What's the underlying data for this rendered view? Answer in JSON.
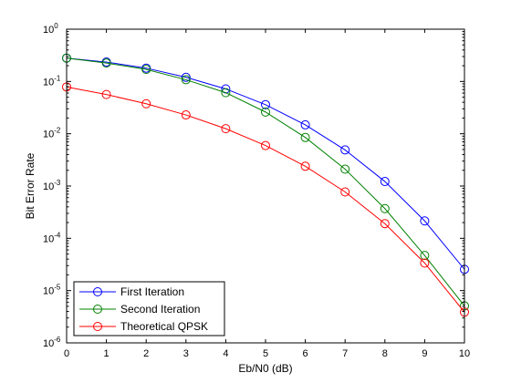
{
  "chart_data": {
    "type": "line",
    "title": "",
    "xlabel": "Eb/N0 (dB)",
    "ylabel": "Bit Error Rate",
    "x": [
      0,
      1,
      2,
      3,
      4,
      5,
      6,
      7,
      8,
      9,
      10
    ],
    "xlim": [
      0,
      10
    ],
    "ylim": [
      1e-06,
      1
    ],
    "yscale": "log",
    "x_ticks": [
      "0",
      "1",
      "2",
      "3",
      "4",
      "5",
      "6",
      "7",
      "8",
      "9",
      "10"
    ],
    "y_ticks": [
      {
        "base": "10",
        "exp": "0"
      },
      {
        "base": "10",
        "exp": "-1"
      },
      {
        "base": "10",
        "exp": "-2"
      },
      {
        "base": "10",
        "exp": "-3"
      },
      {
        "base": "10",
        "exp": "-4"
      },
      {
        "base": "10",
        "exp": "-5"
      },
      {
        "base": "10",
        "exp": "-6"
      }
    ],
    "grid": false,
    "legend_position": "bottom-left",
    "series": [
      {
        "name": "First Iteration",
        "color": "#0000ff",
        "marker": "circle",
        "values": [
          0.28,
          0.235,
          0.18,
          0.12,
          0.072,
          0.036,
          0.0148,
          0.0049,
          0.00122,
          0.000215,
          2.55e-05
        ]
      },
      {
        "name": "Second Iteration",
        "color": "#008000",
        "marker": "circle",
        "values": [
          0.28,
          0.225,
          0.17,
          0.108,
          0.061,
          0.026,
          0.0085,
          0.0021,
          0.00037,
          4.7e-05,
          5.1e-06
        ]
      },
      {
        "name": "Theoretical QPSK",
        "color": "#ff0000",
        "marker": "circle",
        "values": [
          0.0786,
          0.0563,
          0.0375,
          0.0229,
          0.0125,
          0.00595,
          0.00239,
          0.00077,
          0.000191,
          3.36e-05,
          3.87e-06
        ]
      }
    ]
  }
}
